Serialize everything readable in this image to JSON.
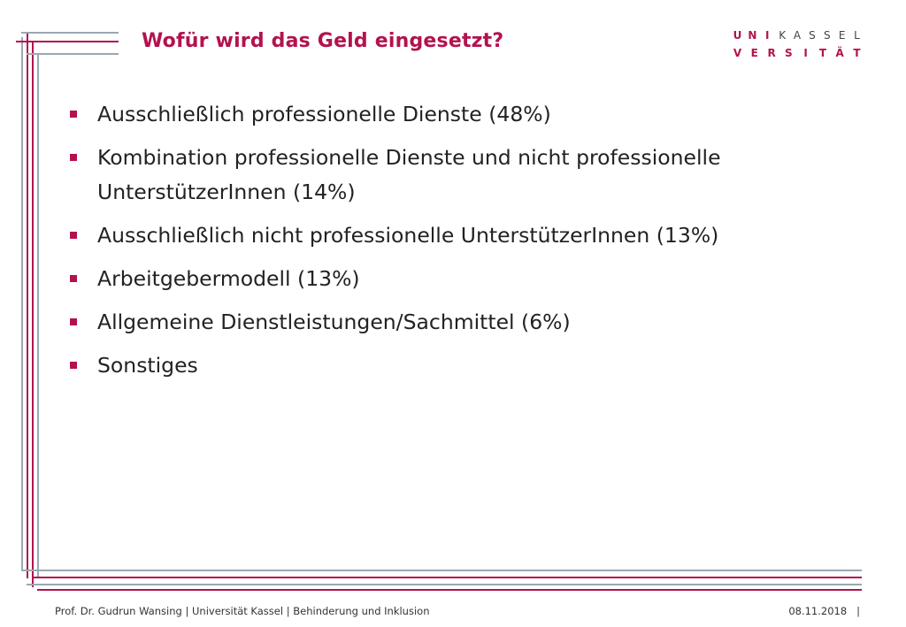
{
  "slide": {
    "title": "Wofür wird das Geld eingesetzt?"
  },
  "logo": {
    "row1": [
      "U",
      "N",
      "I",
      "K",
      "A",
      "S",
      "S",
      "E",
      "L"
    ],
    "row2": [
      "V",
      "E",
      "R",
      "S",
      "I",
      "T",
      "Ä",
      "T"
    ]
  },
  "bullets": [
    "Ausschließlich professionelle Dienste (48%)",
    "Kombination professionelle Dienste und nicht professionelle UnterstützerInnen (14%)",
    "Ausschließlich nicht professionelle UnterstützerInnen (13%)",
    "Arbeitgebermodell (13%)",
    "Allgemeine Dienstleistungen/Sachmittel (6%)",
    "Sonstiges"
  ],
  "footer": {
    "left": "Prof. Dr. Gudrun Wansing | Universität Kassel | Behinderung und Inklusion",
    "right": "08.11.2018   |"
  },
  "colors": {
    "accent": "#b3124f",
    "frame_gray": "#8a9aa6"
  }
}
